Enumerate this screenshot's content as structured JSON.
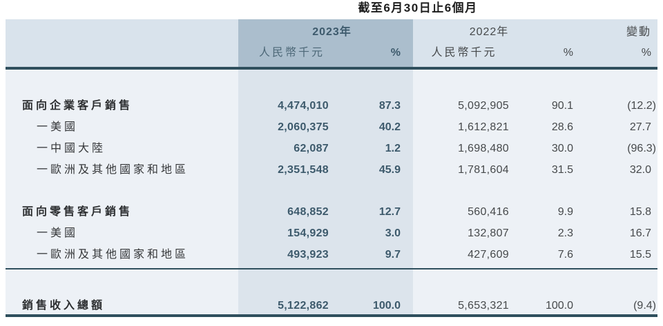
{
  "title": "截至6月30日止6個月",
  "header": {
    "y2023": "2023年",
    "unit2023": "人民幣千元",
    "pct2023": "%",
    "y2022": "2022年",
    "unit2022": "人民幣千元",
    "pct2022": "%",
    "change_label": "變動",
    "change_pct": "%"
  },
  "rows": [
    {
      "label": "面向企業客戶銷售",
      "amt2023": "4,474,010",
      "pct2023": "87.3",
      "amt2022": "5,092,905",
      "pct2022": "90.1",
      "change": "(12.2)"
    },
    {
      "label": "一美國",
      "amt2023": "2,060,375",
      "pct2023": "40.2",
      "amt2022": "1,612,821",
      "pct2022": "28.6",
      "change": "27.7"
    },
    {
      "label": "一中國大陸",
      "amt2023": "62,087",
      "pct2023": "1.2",
      "amt2022": "1,698,480",
      "pct2022": "30.0",
      "change": "(96.3)"
    },
    {
      "label": "一歐洲及其他國家和地區",
      "amt2023": "2,351,548",
      "pct2023": "45.9",
      "amt2022": "1,781,604",
      "pct2022": "31.5",
      "change": "32.0"
    },
    {
      "label": "面向零售客戶銷售",
      "amt2023": "648,852",
      "pct2023": "12.7",
      "amt2022": "560,416",
      "pct2022": "9.9",
      "change": "15.8"
    },
    {
      "label": "一美國",
      "amt2023": "154,929",
      "pct2023": "3.0",
      "amt2022": "132,807",
      "pct2022": "2.3",
      "change": "16.7"
    },
    {
      "label": "一歐洲及其他國家和地區",
      "amt2023": "493,923",
      "pct2023": "9.7",
      "amt2022": "427,609",
      "pct2022": "7.6",
      "change": "15.5"
    }
  ],
  "total": {
    "label": "銷售收入總額",
    "amt2023": "5,122,862",
    "pct2023": "100.0",
    "amt2022": "5,653,321",
    "pct2022": "100.0",
    "change": "(9.4)"
  },
  "colors": {
    "highlight_header": "#abbecd",
    "highlight_body": "#dce4ec",
    "band_header": "#d9e3ec",
    "band_body": "#edf1f6",
    "rule": "#2f4f5d",
    "accent_2023_text": "#3d5a6c"
  }
}
